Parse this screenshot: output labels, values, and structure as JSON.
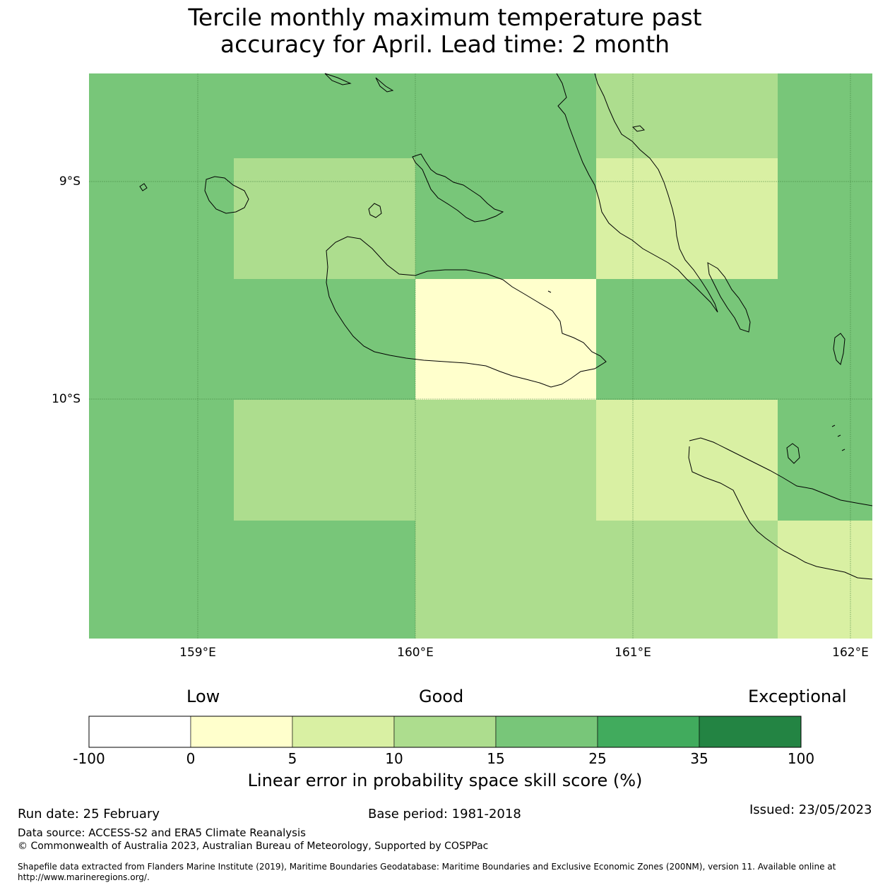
{
  "title_line1": "Tercile monthly maximum temperature past",
  "title_line2": "accuracy for April. Lead time: 2 month",
  "map": {
    "lat_labels": [
      "9°S",
      "10°S"
    ],
    "lon_labels": [
      "159°E",
      "160°E",
      "161°E",
      "162°E"
    ],
    "cells": [
      {
        "band": "15-25",
        "color": "#78c679"
      },
      {
        "band": "10-15",
        "color": "#addd8e"
      },
      {
        "band": "5-10",
        "color": "#d9f0a3"
      },
      {
        "band": "0-5",
        "color": "#ffffcc"
      }
    ]
  },
  "legend": {
    "category_labels": [
      "Low",
      "Good",
      "Exceptional"
    ],
    "tick_labels": [
      "-100",
      "0",
      "5",
      "10",
      "15",
      "25",
      "35",
      "100"
    ],
    "colors": [
      "#ffffff",
      "#ffffcc",
      "#d9f0a3",
      "#addd8e",
      "#78c679",
      "#41ab5d",
      "#238443"
    ],
    "title": "Linear error in probability space skill score (%)"
  },
  "footer": {
    "run_date": "Run date: 25 February",
    "base_period": "Base period: 1981-2018",
    "issued": "Issued: 23/05/2023",
    "data_source": "Data source: ACCESS-S2 and ERA5 Climate Reanalysis",
    "copyright": "© Commonwealth of Australia 2023, Australian Bureau of Meteorology, Supported by COSPPac",
    "shapefile": "Shapefile data extracted from Flanders Marine Institute (2019), Maritime Boundaries Geodatabase: Maritime Boundaries and Exclusive Economic Zones (200NM), version 11. Available online at http://www.marineregions.org/."
  }
}
